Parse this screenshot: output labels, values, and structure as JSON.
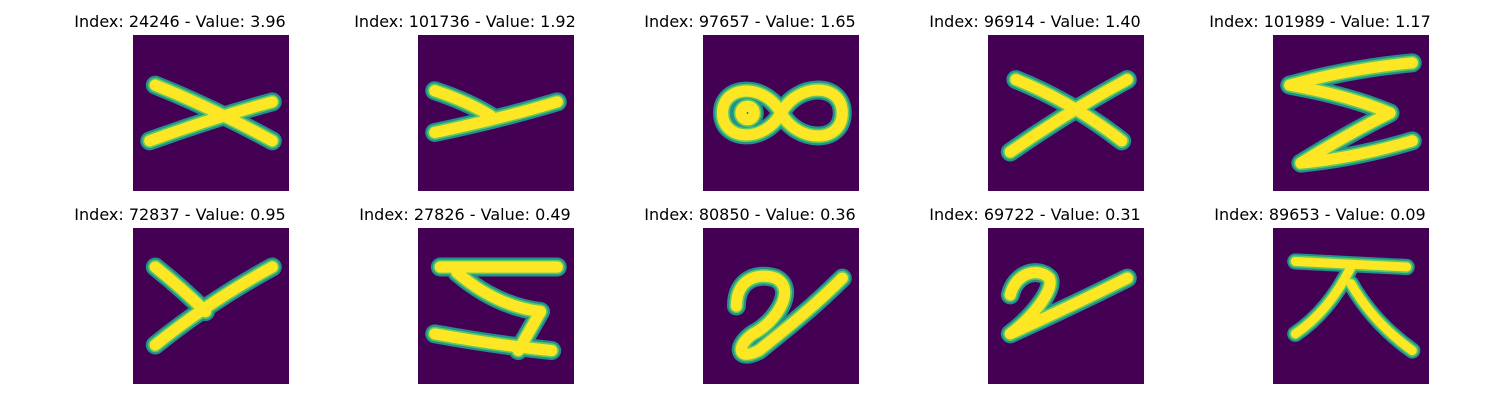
{
  "colors": {
    "background": "#440154",
    "edge_outer": "#21918c",
    "edge_inner": "#5ec962",
    "ink": "#fde725"
  },
  "panels": [
    {
      "title": "Index: 24246 - Value: 3.96",
      "glyph": "x-shape"
    },
    {
      "title": "Index: 101736 - Value: 1.92",
      "glyph": "y-shape-tilted"
    },
    {
      "title": "Index: 97657 - Value: 1.65",
      "glyph": "infinity-loop"
    },
    {
      "title": "Index: 96914 - Value: 1.40",
      "glyph": "x-shape-slanted"
    },
    {
      "title": "Index: 101989 - Value: 1.17",
      "glyph": "s-zigzag"
    },
    {
      "title": "Index: 72837 - Value: 0.95",
      "glyph": "y-shape"
    },
    {
      "title": "Index: 27826 - Value: 0.49",
      "glyph": "z-shape"
    },
    {
      "title": "Index: 80850 - Value: 0.36",
      "glyph": "loop-stroke"
    },
    {
      "title": "Index: 69722 - Value: 0.31",
      "glyph": "two-shape"
    },
    {
      "title": "Index: 89653 - Value: 0.09",
      "glyph": "t-shape"
    }
  ]
}
